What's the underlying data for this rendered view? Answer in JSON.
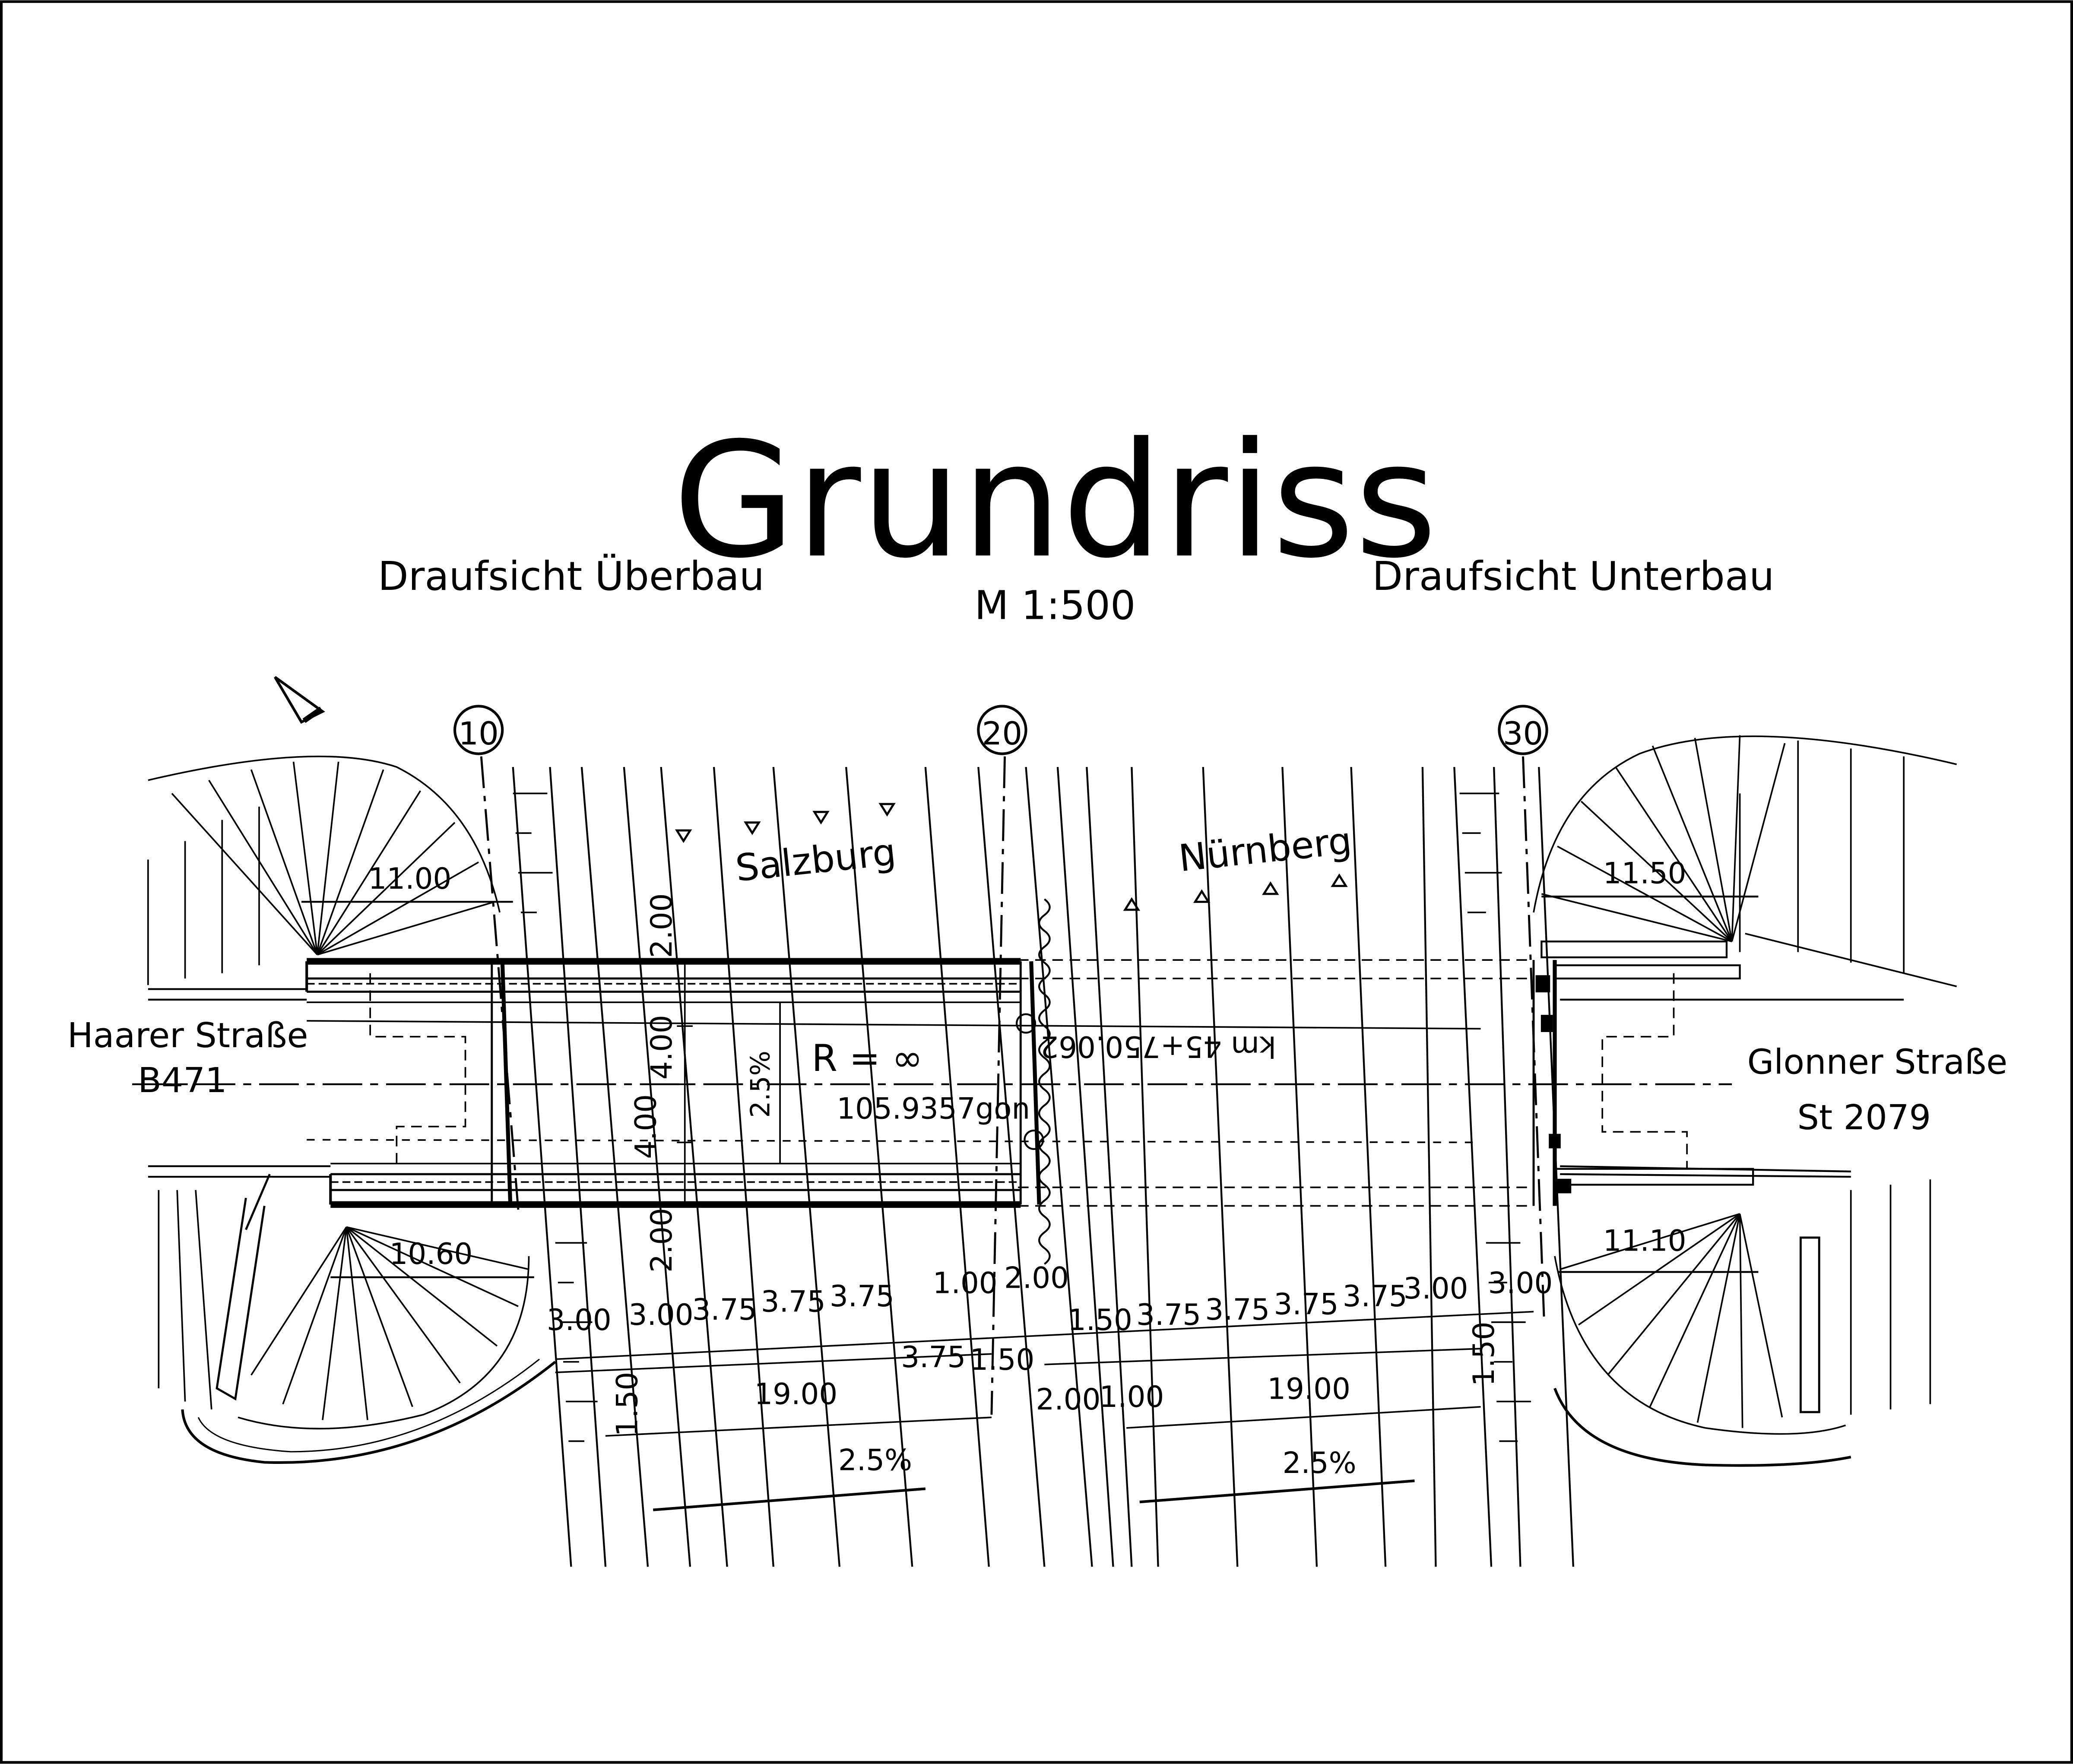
{
  "drawing": {
    "title": "Grundriss",
    "scale": "M 1:500",
    "left_view_label": "Draufsicht Überbau",
    "right_view_label": "Draufsicht Unterbau"
  },
  "axes": [
    {
      "label": "10"
    },
    {
      "label": "20"
    },
    {
      "label": "30"
    }
  ],
  "roads": {
    "left_name": "Haarer Straße",
    "left_code": "B471",
    "right_name": "Glonner Straße",
    "right_code": "St 2079"
  },
  "directions": {
    "westbound": "Salzburg",
    "eastbound": "Nürnberg"
  },
  "alignment": {
    "radius": "R = ∞",
    "crossing_angle": "105.9357gon",
    "station": "km 45+750.062",
    "deck_crossfall": "2.5%"
  },
  "abutment_radii": {
    "top_left": "11.00",
    "bottom_left": "10.60",
    "top_right": "11.50",
    "bottom_right": "11.10"
  },
  "deck_dims": {
    "top": "2.00",
    "upper": "4.00",
    "lower": "4.00",
    "bottom": "2.00"
  },
  "lane_dims": {
    "row1": [
      "3.00",
      "3.00",
      "3.75",
      "3.75",
      "3.75",
      "1.00",
      "2.00",
      "1.50",
      "3.75",
      "3.75",
      "3.75",
      "3.75",
      "3.00",
      "3.00"
    ],
    "row2": [
      "3.75",
      "1.50",
      "1.50"
    ],
    "row3": [
      "1.50",
      "19.00",
      "2.00",
      "1.00",
      "19.00"
    ],
    "crossfall": [
      "2.5%",
      "2.5%"
    ]
  }
}
